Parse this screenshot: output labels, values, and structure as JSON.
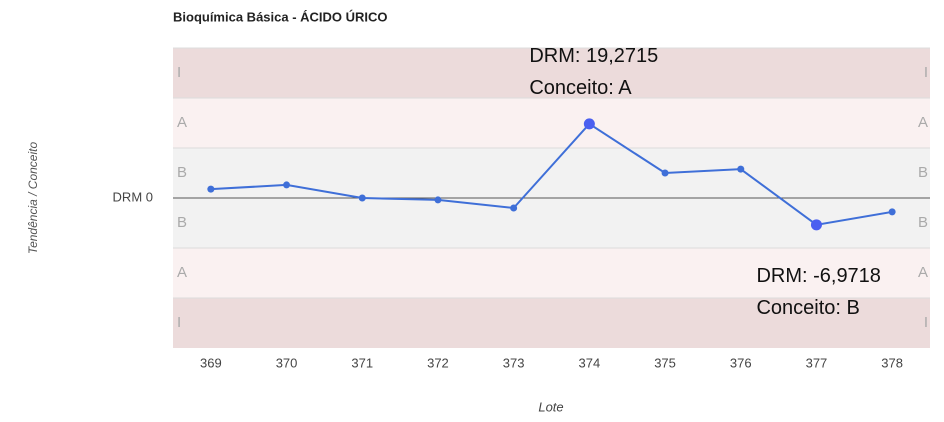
{
  "chart_data": {
    "type": "line",
    "title": "Bioquímica Básica - ÁCIDO ÚRICO",
    "y_label": "Tendência / Conceito",
    "x_label": "Lote",
    "categories": [
      "369",
      "370",
      "371",
      "372",
      "373",
      "374",
      "375",
      "376",
      "377",
      "378"
    ],
    "series": [
      {
        "name": "DRM",
        "color": "#3f6fd8",
        "values": [
          2.3,
          3.4,
          0,
          -0.5,
          -2.6,
          19.2715,
          6.5,
          7.5,
          -6.9718,
          -3.6
        ]
      }
    ],
    "ylim": [
      -39,
      39
    ],
    "yticks": [
      {
        "value": 0,
        "label": "DRM 0"
      }
    ],
    "bands": [
      {
        "label": "I",
        "from": 26,
        "to": 39,
        "color": "#ecdbdb"
      },
      {
        "label": "A",
        "from": 13,
        "to": 26,
        "color": "#faf1f1"
      },
      {
        "label": "B",
        "from": 0,
        "to": 13,
        "color": "#f2f2f2"
      },
      {
        "label": "B",
        "from": -13,
        "to": 0,
        "color": "#f2f2f2"
      },
      {
        "label": "A",
        "from": -26,
        "to": -13,
        "color": "#faf1f1"
      },
      {
        "label": "I",
        "from": -39,
        "to": -26,
        "color": "#ecdbdb"
      }
    ],
    "annotations": [
      {
        "index": 5,
        "lines": [
          "DRM: 19,2715",
          "Conceito: A"
        ]
      },
      {
        "index": 8,
        "lines": [
          "DRM: -6,9718",
          "Conceito: B"
        ]
      }
    ]
  }
}
